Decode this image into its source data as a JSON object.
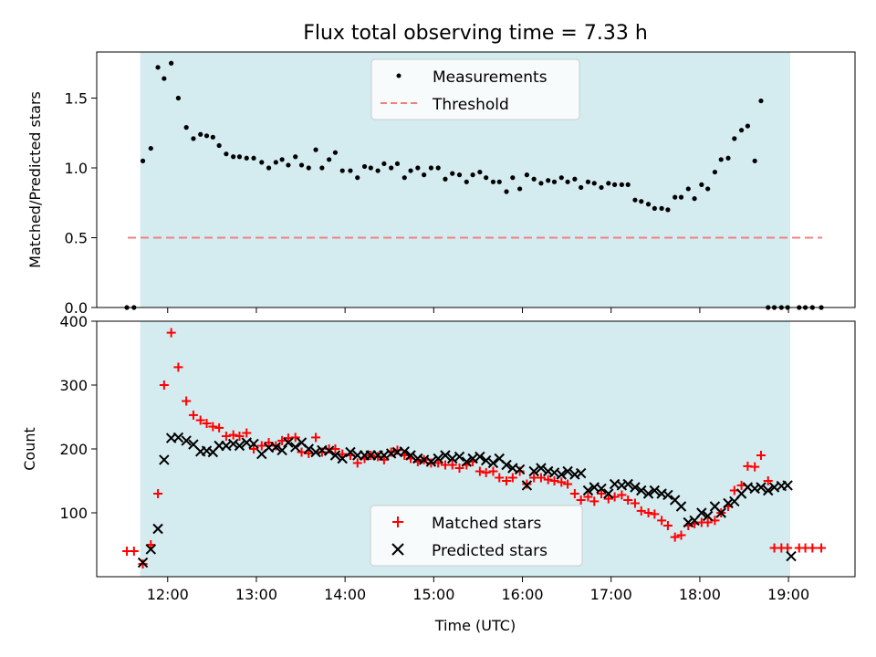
{
  "chart_data": [
    {
      "type": "scatter",
      "title": "Flux total observing time = 7.33 h",
      "ylabel": "Matched/Predicted stars",
      "ylim": [
        0,
        1.83
      ],
      "xlim": [
        11.2,
        19.75
      ],
      "yticks": [
        0.0,
        0.5,
        1.0,
        1.5
      ],
      "yticklabels": [
        "0.0",
        "0.5",
        "1.0",
        "1.5"
      ],
      "shaded_interval": [
        11.69,
        19.02
      ],
      "shade_color": "#d4ebf0",
      "legend_position": "top-center",
      "series": [
        {
          "name": "Measurements",
          "marker": "dot",
          "color": "#000000",
          "x": [
            11.54,
            11.62,
            11.72,
            11.81,
            11.89,
            11.96,
            12.04,
            12.12,
            12.21,
            12.29,
            12.37,
            12.44,
            12.51,
            12.58,
            12.66,
            12.74,
            12.81,
            12.89,
            12.97,
            13.06,
            13.14,
            13.22,
            13.29,
            13.36,
            13.44,
            13.51,
            13.59,
            13.67,
            13.74,
            13.82,
            13.89,
            13.97,
            14.06,
            14.14,
            14.22,
            14.29,
            14.37,
            14.44,
            14.52,
            14.59,
            14.67,
            14.74,
            14.82,
            14.89,
            14.97,
            15.05,
            15.13,
            15.21,
            15.29,
            15.37,
            15.44,
            15.52,
            15.59,
            15.67,
            15.74,
            15.82,
            15.89,
            15.97,
            16.05,
            16.13,
            16.21,
            16.29,
            16.36,
            16.44,
            16.51,
            16.59,
            16.66,
            16.74,
            16.81,
            16.89,
            16.97,
            17.04,
            17.12,
            17.19,
            17.27,
            17.34,
            17.42,
            17.49,
            17.57,
            17.64,
            17.72,
            17.79,
            17.87,
            17.94,
            18.02,
            18.09,
            18.17,
            18.24,
            18.32,
            18.39,
            18.47,
            18.54,
            18.62,
            18.69,
            18.77,
            18.84,
            18.92,
            18.99,
            19.12,
            19.19,
            19.27,
            19.37
          ],
          "y": [
            0.0,
            0.0,
            1.05,
            1.14,
            1.72,
            1.64,
            1.75,
            1.5,
            1.29,
            1.21,
            1.24,
            1.23,
            1.22,
            1.16,
            1.1,
            1.08,
            1.08,
            1.07,
            1.07,
            1.04,
            1.0,
            1.04,
            1.06,
            1.02,
            1.08,
            1.02,
            1.0,
            1.13,
            1.0,
            1.06,
            1.11,
            0.98,
            0.98,
            0.93,
            1.01,
            1.0,
            0.98,
            1.03,
            1.0,
            1.03,
            0.93,
            0.98,
            1.0,
            0.95,
            1.0,
            1.0,
            0.92,
            0.96,
            0.95,
            0.9,
            0.95,
            0.97,
            0.93,
            0.9,
            0.9,
            0.83,
            0.93,
            0.85,
            0.95,
            0.92,
            0.89,
            0.91,
            0.9,
            0.93,
            0.9,
            0.92,
            0.86,
            0.9,
            0.89,
            0.86,
            0.89,
            0.88,
            0.88,
            0.88,
            0.77,
            0.76,
            0.74,
            0.71,
            0.71,
            0.7,
            0.79,
            0.79,
            0.85,
            0.78,
            0.88,
            0.85,
            0.97,
            1.06,
            1.07,
            1.21,
            1.27,
            1.3,
            1.05,
            1.48,
            0.0,
            0.0,
            0.0,
            0.0,
            0.0,
            0.0,
            0.0,
            0.0
          ]
        },
        {
          "name": "Threshold",
          "line_style": "dashed",
          "color": "#f08080",
          "x": [
            11.55,
            19.38
          ],
          "y": [
            0.5,
            0.5
          ]
        }
      ]
    },
    {
      "type": "scatter",
      "xlabel": "Time (UTC)",
      "ylabel": "Count",
      "ylim": [
        0,
        400
      ],
      "xlim": [
        11.2,
        19.75
      ],
      "yticks": [
        100,
        200,
        300,
        400
      ],
      "yticklabels": [
        "100",
        "200",
        "300",
        "400"
      ],
      "xticks": [
        12,
        13,
        14,
        15,
        16,
        17,
        18,
        19
      ],
      "xticklabels": [
        "12:00",
        "13:00",
        "14:00",
        "15:00",
        "16:00",
        "17:00",
        "18:00",
        "19:00"
      ],
      "shaded_interval": [
        11.69,
        19.02
      ],
      "shade_color": "#d4ebf0",
      "legend_position": "bottom-center",
      "series": [
        {
          "name": "Matched stars",
          "marker": "plus",
          "color": "#ff0000",
          "x": [
            11.54,
            11.62,
            11.72,
            11.81,
            11.89,
            11.96,
            12.04,
            12.12,
            12.21,
            12.29,
            12.37,
            12.44,
            12.51,
            12.58,
            12.66,
            12.74,
            12.81,
            12.89,
            12.97,
            13.06,
            13.14,
            13.22,
            13.29,
            13.36,
            13.44,
            13.51,
            13.59,
            13.67,
            13.74,
            13.82,
            13.89,
            13.97,
            14.06,
            14.14,
            14.22,
            14.29,
            14.37,
            14.44,
            14.52,
            14.59,
            14.67,
            14.74,
            14.82,
            14.89,
            14.97,
            15.05,
            15.13,
            15.21,
            15.29,
            15.37,
            15.44,
            15.52,
            15.59,
            15.67,
            15.74,
            15.82,
            15.89,
            15.97,
            16.05,
            16.13,
            16.21,
            16.29,
            16.36,
            16.44,
            16.51,
            16.59,
            16.66,
            16.74,
            16.81,
            16.89,
            16.97,
            17.04,
            17.12,
            17.19,
            17.27,
            17.34,
            17.42,
            17.49,
            17.57,
            17.64,
            17.72,
            17.79,
            17.87,
            17.94,
            18.02,
            18.09,
            18.17,
            18.24,
            18.32,
            18.39,
            18.47,
            18.54,
            18.62,
            18.69,
            18.77,
            18.84,
            18.92,
            18.99,
            19.12,
            19.19,
            19.27,
            19.37
          ],
          "y": [
            40,
            40,
            20,
            50,
            130,
            300,
            382,
            328,
            275,
            253,
            245,
            240,
            235,
            233,
            220,
            222,
            220,
            225,
            200,
            205,
            210,
            205,
            213,
            217,
            218,
            195,
            193,
            218,
            195,
            200,
            200,
            192,
            190,
            178,
            185,
            190,
            188,
            183,
            195,
            198,
            190,
            185,
            180,
            183,
            178,
            178,
            175,
            175,
            170,
            175,
            180,
            165,
            163,
            165,
            155,
            150,
            155,
            165,
            145,
            155,
            155,
            152,
            150,
            148,
            145,
            130,
            120,
            125,
            118,
            130,
            122,
            125,
            128,
            120,
            115,
            103,
            100,
            98,
            88,
            80,
            62,
            65,
            80,
            83,
            85,
            85,
            88,
            100,
            110,
            135,
            143,
            173,
            172,
            190,
            150,
            45,
            45,
            45,
            45,
            45,
            45,
            45
          ]
        },
        {
          "name": "Predicted stars",
          "marker": "x",
          "color": "#000000",
          "x": [
            11.72,
            11.81,
            11.89,
            11.96,
            12.04,
            12.12,
            12.21,
            12.29,
            12.37,
            12.44,
            12.51,
            12.58,
            12.66,
            12.74,
            12.81,
            12.89,
            12.97,
            13.06,
            13.14,
            13.22,
            13.29,
            13.36,
            13.44,
            13.51,
            13.59,
            13.67,
            13.74,
            13.82,
            13.89,
            13.97,
            14.06,
            14.14,
            14.22,
            14.29,
            14.37,
            14.44,
            14.52,
            14.59,
            14.67,
            14.74,
            14.82,
            14.89,
            14.97,
            15.05,
            15.13,
            15.21,
            15.29,
            15.37,
            15.44,
            15.52,
            15.59,
            15.67,
            15.74,
            15.82,
            15.89,
            15.97,
            16.05,
            16.13,
            16.21,
            16.29,
            16.36,
            16.44,
            16.51,
            16.59,
            16.66,
            16.74,
            16.81,
            16.89,
            16.97,
            17.04,
            17.12,
            17.19,
            17.27,
            17.34,
            17.42,
            17.49,
            17.57,
            17.64,
            17.72,
            17.79,
            17.87,
            17.94,
            18.02,
            18.09,
            18.17,
            18.24,
            18.32,
            18.39,
            18.47,
            18.54,
            18.62,
            18.69,
            18.77,
            18.84,
            18.92,
            18.99,
            19.03
          ],
          "y": [
            22,
            43,
            75,
            183,
            217,
            218,
            213,
            207,
            196,
            197,
            195,
            205,
            205,
            208,
            205,
            210,
            208,
            192,
            202,
            203,
            198,
            210,
            203,
            210,
            200,
            195,
            198,
            197,
            190,
            185,
            195,
            190,
            190,
            190,
            190,
            190,
            193,
            195,
            196,
            190,
            185,
            183,
            180,
            185,
            190,
            185,
            188,
            180,
            185,
            188,
            182,
            178,
            185,
            175,
            170,
            168,
            143,
            165,
            170,
            165,
            163,
            160,
            165,
            160,
            162,
            135,
            140,
            138,
            130,
            145,
            143,
            145,
            140,
            135,
            130,
            135,
            130,
            128,
            120,
            110,
            85,
            88,
            100,
            95,
            110,
            100,
            115,
            118,
            130,
            140,
            138,
            140,
            135,
            140,
            142,
            143,
            32
          ]
        }
      ]
    }
  ]
}
